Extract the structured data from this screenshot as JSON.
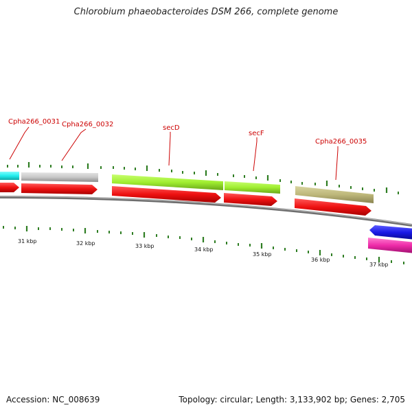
{
  "title": "Chlorobium phaeobacteroides DSM 266, complete genome",
  "accession": "Accession: NC_008639",
  "summary": "Topology: circular; Length: 3,133,902 bp; Genes: 2,705",
  "gene_labels": [
    "Cpha266_0031",
    "Cpha266_0032",
    "secD",
    "secF",
    "Cpha266_0035"
  ],
  "tick_labels": [
    "31 kbp",
    "32 kbp",
    "33 kbp",
    "34 kbp",
    "35 kbp",
    "36 kbp",
    "37 kbp"
  ],
  "colors": {
    "cds": "#ee1111",
    "gene_cyan": "#22eeee",
    "gene_gray": "#c8c8c8",
    "gene_lime": "#a0ee30",
    "gene_khaki": "#bdb77a",
    "gene_blue": "#1a1ae6",
    "gene_pink": "#ee2aa8",
    "tick": "#2e7d22",
    "backbone": "#808080"
  }
}
